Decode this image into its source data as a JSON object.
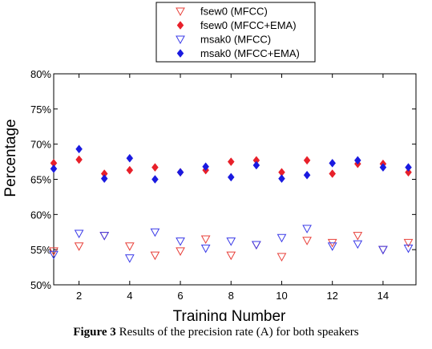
{
  "chart_data": {
    "type": "scatter",
    "xlabel": "Training Number",
    "ylabel": "Percentage",
    "xlim": [
      1,
      15.3
    ],
    "ylim": [
      50,
      80
    ],
    "xticks": [
      2,
      4,
      6,
      8,
      10,
      12,
      14
    ],
    "yticks": [
      50,
      55,
      60,
      65,
      70,
      75,
      80
    ],
    "ytick_labels": [
      "50%",
      "55%",
      "60%",
      "65%",
      "70%",
      "75%",
      "80%"
    ],
    "grid": false,
    "legend_position": "top-center",
    "x": [
      1,
      2,
      3,
      4,
      5,
      6,
      7,
      8,
      9,
      10,
      11,
      12,
      13,
      14,
      15
    ],
    "series": [
      {
        "name": "fsew0 (MFCC)",
        "marker": "triangle-down-open",
        "color": "#e8403a",
        "values": [
          54.8,
          55.5,
          57.0,
          55.5,
          54.2,
          54.8,
          56.5,
          54.2,
          55.7,
          54.0,
          56.3,
          56.0,
          57.0,
          55.0,
          56.0
        ]
      },
      {
        "name": "fsew0 (MFCC+EMA)",
        "marker": "diamond-filled",
        "color": "#e8202a",
        "values": [
          67.3,
          67.8,
          65.8,
          66.3,
          66.7,
          66.0,
          66.3,
          67.5,
          67.7,
          66.0,
          67.7,
          65.8,
          67.2,
          67.2,
          66.0
        ]
      },
      {
        "name": "msak0 (MFCC)",
        "marker": "triangle-down-open",
        "color": "#3a3ae8",
        "values": [
          54.3,
          57.3,
          57.0,
          53.8,
          57.5,
          56.2,
          55.2,
          56.2,
          55.7,
          56.7,
          58.0,
          55.5,
          55.8,
          55.0,
          55.2
        ]
      },
      {
        "name": "msak0 (MFCC+EMA)",
        "marker": "diamond-filled",
        "color": "#1a1ae0",
        "values": [
          66.5,
          69.3,
          65.1,
          68.0,
          65.0,
          66.0,
          66.8,
          65.3,
          67.0,
          65.1,
          65.6,
          67.3,
          67.7,
          66.7,
          66.7
        ]
      }
    ]
  },
  "caption": {
    "label": "Figure 3",
    "text": " Results of the precision rate (A) for both speakers"
  }
}
